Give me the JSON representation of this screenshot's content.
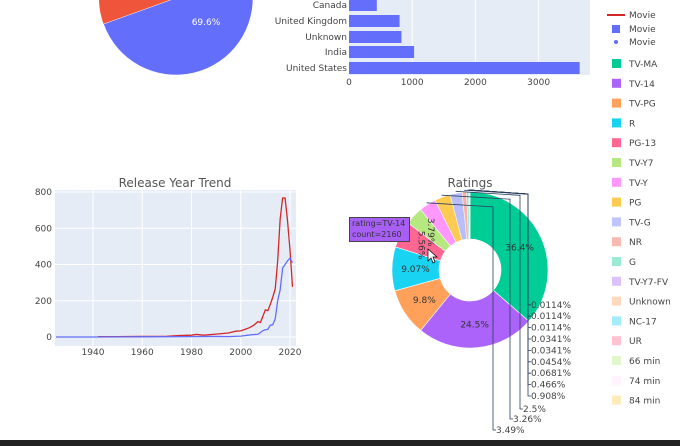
{
  "chart_data": [
    {
      "type": "pie",
      "slices": [
        {
          "label": "",
          "value": 69.6,
          "color": "#636EFA",
          "text": "69.6%"
        },
        {
          "label": "",
          "value": 30.4,
          "color": "#EF553B"
        }
      ]
    },
    {
      "type": "bar",
      "orientation": "horizontal",
      "categories": [
        "Canada",
        "United Kingdom",
        "Unknown",
        "India",
        "United States"
      ],
      "values": [
        440,
        800,
        830,
        1030,
        3650
      ],
      "xticks": [
        "0",
        "1000",
        "2000",
        "3000"
      ],
      "color": "#636EFA",
      "grid": true
    },
    {
      "type": "line",
      "title": "Release Year Trend",
      "xticks": [
        "1940",
        "1960",
        "1980",
        "2000",
        "2020"
      ],
      "yticks": [
        "0",
        "200",
        "400",
        "600",
        "800"
      ],
      "xlim": [
        1925,
        2021
      ],
      "ylim": [
        -20,
        810
      ],
      "grid": true,
      "series": [
        {
          "color": "#d62728",
          "x": [
            1942,
            1950,
            1960,
            1970,
            1975,
            1980,
            1982,
            1985,
            1990,
            1995,
            1998,
            2000,
            2003,
            2005,
            2007,
            2008,
            2009,
            2010,
            2011,
            2012,
            2013,
            2014,
            2015,
            2016,
            2017,
            2018,
            2019,
            2020,
            2021
          ],
          "y": [
            2,
            2,
            3,
            4,
            8,
            10,
            14,
            10,
            16,
            22,
            32,
            34,
            48,
            62,
            85,
            80,
            115,
            150,
            145,
            180,
            220,
            265,
            420,
            650,
            767,
            767,
            640,
            480,
            277
          ]
        },
        {
          "color": "#636EFA",
          "x": [
            1925,
            1940,
            1960,
            1980,
            1990,
            1995,
            2000,
            2003,
            2005,
            2007,
            2008,
            2009,
            2010,
            2011,
            2012,
            2013,
            2014,
            2015,
            2016,
            2017,
            2018,
            2019,
            2020,
            2021
          ],
          "y": [
            0,
            0,
            1,
            2,
            3,
            2,
            5,
            10,
            13,
            15,
            25,
            35,
            40,
            42,
            65,
            68,
            100,
            200,
            260,
            380,
            400,
            420,
            435,
            410
          ]
        }
      ]
    },
    {
      "type": "pie",
      "hole": 0.4,
      "title": "Ratings",
      "labels": [
        "TV-MA",
        "TV-14",
        "TV-PG",
        "R",
        "PG-13",
        "TV-Y7",
        "TV-Y",
        "PG",
        "TV-G",
        "NR",
        "G",
        "TV-Y7-FV",
        "Unknown",
        "NC-17",
        "UR",
        "66 min",
        "74 min",
        "84 min"
      ],
      "percents": [
        36.4,
        24.5,
        9.8,
        9.07,
        5.56,
        3.79,
        3.49,
        3.26,
        2.5,
        0.908,
        0.466,
        0.0681,
        0.0454,
        0.0341,
        0.0341,
        0.0114,
        0.0114,
        0.0114
      ],
      "texts": [
        "36.4%",
        "24.5%",
        "9.8%",
        "9.07%",
        "5.56%",
        "3.79%",
        "3.49%",
        "3.26%",
        "2.5%",
        "0.908%",
        "0.466%",
        "0.0681%",
        "0.0454%",
        "0.0341%",
        "0.0341%",
        "0.0114%",
        "0.0114%",
        "0.0114%"
      ],
      "colors": [
        "#00CC96",
        "#AB63FA",
        "#FFA15A",
        "#19D3F3",
        "#FF6692",
        "#B6E880",
        "#FF97FF",
        "#FECB52",
        "#636EFA",
        "#EF553B",
        "#00CC96",
        "#AB63FA",
        "#FFA15A",
        "#19D3F3",
        "#FF6692",
        "#B6E880",
        "#FF97FF",
        "#FECB52"
      ],
      "tooltip": {
        "line1": "rating=TV-14",
        "line2": "count=2160"
      }
    }
  ],
  "legend": {
    "top_items": [
      {
        "label": "Movie",
        "marker": "line",
        "color": "#d62728"
      },
      {
        "label": "Movie",
        "marker": "square",
        "color": "#636EFA"
      },
      {
        "label": "Movie",
        "marker": "dot",
        "color": "#636EFA"
      }
    ]
  }
}
